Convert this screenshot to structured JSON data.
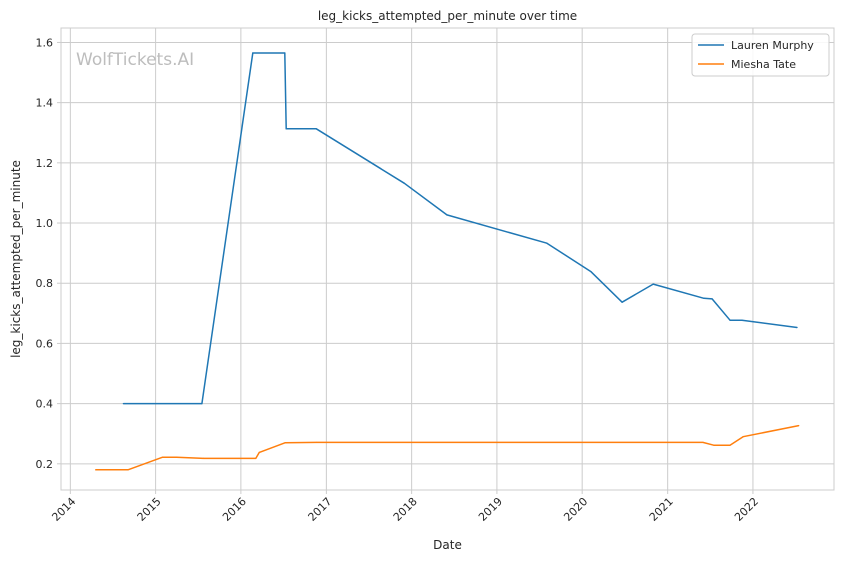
{
  "watermark": "WolfTickets.AI",
  "chart_data": {
    "type": "line",
    "title": "leg_kicks_attempted_per_minute over time",
    "xlabel": "Date",
    "ylabel": "leg_kicks_attempted_per_minute",
    "x_ticks": [
      "2014",
      "2015",
      "2016",
      "2017",
      "2018",
      "2019",
      "2020",
      "2021",
      "2022"
    ],
    "y_ticks": [
      "0.2",
      "0.4",
      "0.6",
      "0.8",
      "1.0",
      "1.2",
      "1.4",
      "1.6"
    ],
    "xlim": [
      "2013-11-22",
      "2022-12-14"
    ],
    "ylim": [
      0.113,
      1.648
    ],
    "grid": true,
    "legend_position": "top-right",
    "series": [
      {
        "name": "Lauren Murphy",
        "color": "#1f77b4",
        "points": [
          [
            "2014-08-16",
            0.4
          ],
          [
            "2015-07-18",
            0.4
          ],
          [
            "2016-02-21",
            1.565
          ],
          [
            "2016-07-07",
            1.565
          ],
          [
            "2016-07-13",
            1.313
          ],
          [
            "2016-11-19",
            1.313
          ],
          [
            "2017-12-01",
            1.132
          ],
          [
            "2018-06-01",
            1.027
          ],
          [
            "2019-08-03",
            0.933
          ],
          [
            "2020-02-08",
            0.838
          ],
          [
            "2020-06-20",
            0.737
          ],
          [
            "2020-10-31",
            0.797
          ],
          [
            "2021-06-05",
            0.75
          ],
          [
            "2021-07-10",
            0.748
          ],
          [
            "2021-09-25",
            0.677
          ],
          [
            "2021-11-15",
            0.677
          ],
          [
            "2022-07-09",
            0.653
          ]
        ]
      },
      {
        "name": "Miesha Tate",
        "color": "#ff7f0e",
        "points": [
          [
            "2014-04-19",
            0.18
          ],
          [
            "2014-09-05",
            0.18
          ],
          [
            "2015-01-31",
            0.222
          ],
          [
            "2015-04-01",
            0.222
          ],
          [
            "2015-07-25",
            0.218
          ],
          [
            "2016-03-05",
            0.218
          ],
          [
            "2016-03-20",
            0.238
          ],
          [
            "2016-07-09",
            0.27
          ],
          [
            "2016-11-19",
            0.271
          ],
          [
            "2021-06-01",
            0.271
          ],
          [
            "2021-07-17",
            0.262
          ],
          [
            "2021-09-25",
            0.262
          ],
          [
            "2021-11-20",
            0.29
          ],
          [
            "2022-07-16",
            0.327
          ]
        ]
      }
    ]
  }
}
